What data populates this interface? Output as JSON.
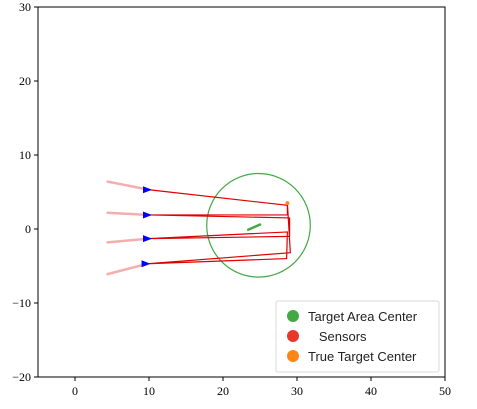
{
  "chart_data": {
    "type": "scatter",
    "title": "",
    "xlabel": "",
    "ylabel": "",
    "xlim": [
      -5,
      50
    ],
    "ylim": [
      -20,
      30
    ],
    "x_ticks": [
      0,
      10,
      20,
      30,
      40,
      50
    ],
    "y_ticks": [
      -20,
      -10,
      0,
      10,
      20,
      30
    ],
    "x_tick_labels": [
      "0",
      "10",
      "20",
      "30",
      "40",
      "50"
    ],
    "y_tick_labels": [
      "−20",
      "−10",
      "0",
      "10",
      "20",
      "30"
    ],
    "grid": false,
    "legend_position": "bottom-right",
    "legend": [
      {
        "label": "Target Area Center",
        "color": "#44a844"
      },
      {
        "label": "   Sensors",
        "color": "#e8372a"
      },
      {
        "label": "True Target Center",
        "color": "#ff8515"
      }
    ],
    "target_area": {
      "center": [
        24.8,
        0.5
      ],
      "radius": 7.0,
      "color": "#44a844"
    },
    "true_target_center": {
      "point": [
        28.7,
        3.5
      ],
      "color": "#ff8515"
    },
    "sensors": [
      {
        "position": [
          10.0,
          5.3
        ],
        "trail_start": [
          4.4,
          6.4
        ],
        "heading": "right"
      },
      {
        "position": [
          10.0,
          1.9
        ],
        "trail_start": [
          4.4,
          2.2
        ],
        "heading": "right"
      },
      {
        "position": [
          10.0,
          -1.3
        ],
        "trail_start": [
          4.4,
          -1.8
        ],
        "heading": "right"
      },
      {
        "position": [
          9.8,
          -4.7
        ],
        "trail_start": [
          4.4,
          -6.1
        ],
        "heading": "right"
      }
    ],
    "sensor_color": "#0000ff",
    "trail_color": "#f3a0a0",
    "path": {
      "color": "#dd0000",
      "points": [
        [
          10.0,
          5.3
        ],
        [
          28.7,
          3.2
        ],
        [
          28.7,
          1.9
        ],
        [
          10.0,
          1.9
        ],
        [
          29.0,
          1.5
        ],
        [
          29.0,
          -1.0
        ],
        [
          10.0,
          -1.3
        ],
        [
          28.7,
          -0.4
        ],
        [
          28.6,
          -4.0
        ],
        [
          9.8,
          -4.7
        ],
        [
          29.1,
          -3.2
        ],
        [
          28.7,
          3.5
        ]
      ]
    },
    "estimate_marker": {
      "start": [
        23.4,
        -0.1
      ],
      "end": [
        25.0,
        0.6
      ],
      "color": "#44a844"
    }
  }
}
